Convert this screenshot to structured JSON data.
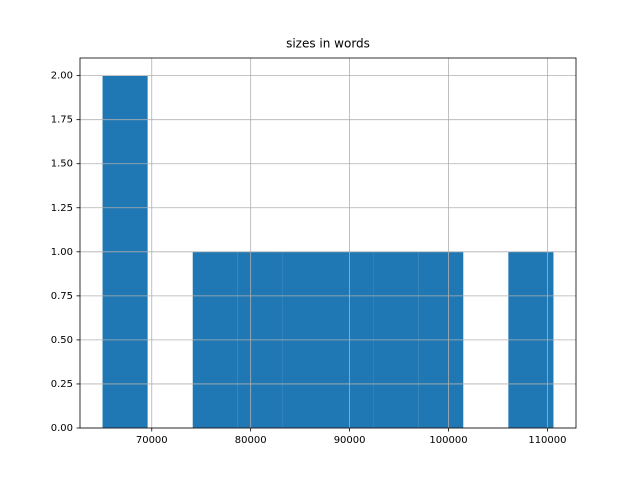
{
  "chart_data": {
    "type": "histogram",
    "title": "sizes in words",
    "bins": [
      65025,
      69583,
      74142,
      78700,
      83258,
      87817,
      92375,
      96934,
      101492,
      106050,
      110609
    ],
    "counts": [
      2,
      0,
      1,
      1,
      1,
      1,
      1,
      1,
      0,
      1
    ],
    "color": "#1f77b4",
    "xlim": [
      62746,
      112888
    ],
    "xticks": [
      70000,
      80000,
      90000,
      100000,
      110000
    ],
    "ylim": [
      0,
      2.1
    ],
    "yticks": [
      {
        "value": 0,
        "label": "0.00"
      },
      {
        "value": 0.25,
        "label": "0.25"
      },
      {
        "value": 0.5,
        "label": "0.50"
      },
      {
        "value": 0.75,
        "label": "0.75"
      },
      {
        "value": 1,
        "label": "1.00"
      },
      {
        "value": 1.25,
        "label": "1.25"
      },
      {
        "value": 1.5,
        "label": "1.50"
      },
      {
        "value": 1.75,
        "label": "1.75"
      },
      {
        "value": 2,
        "label": "2.00"
      }
    ],
    "grid": true
  }
}
